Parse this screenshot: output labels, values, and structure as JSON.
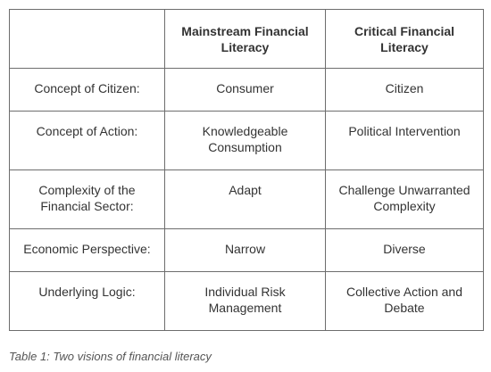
{
  "table": {
    "header": [
      "",
      "Mainstream Financial Literacy",
      "Critical Financial Literacy"
    ],
    "rows": [
      {
        "label": "Concept of Citizen:",
        "mainstream": "Consumer",
        "critical": "Citizen"
      },
      {
        "label": "Concept of Action:",
        "mainstream": "Knowledgeable Consumption",
        "critical": "Political Intervention"
      },
      {
        "label": "Complexity of the Financial Sector:",
        "mainstream": "Adapt",
        "critical": "Challenge Unwarranted Complexity"
      },
      {
        "label": "Economic Perspective:",
        "mainstream": "Narrow",
        "critical": "Diverse"
      },
      {
        "label": "Underlying Logic:",
        "mainstream": "Individual Risk Management",
        "critical": "Collective Action and Debate"
      }
    ]
  },
  "caption": "Table 1: Two visions of financial literacy"
}
